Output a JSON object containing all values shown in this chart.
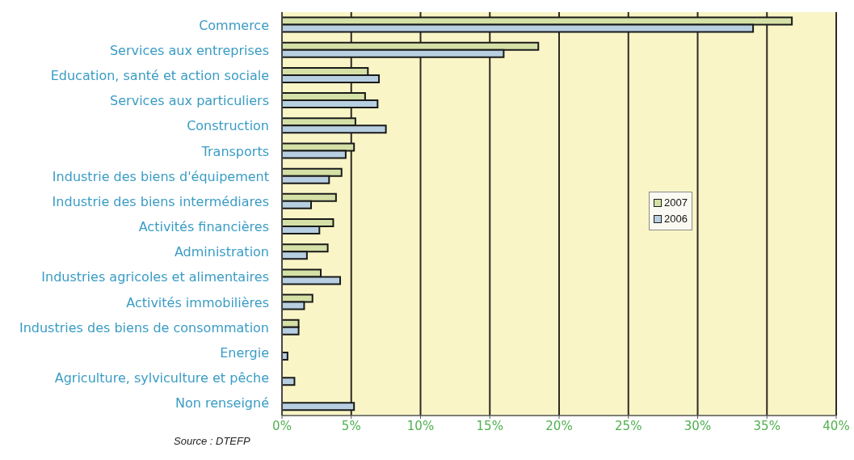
{
  "chart_data": {
    "type": "bar",
    "orientation": "horizontal",
    "categories": [
      "Commerce",
      "Services aux entreprises",
      "Education, santé et action sociale",
      "Services aux particuliers",
      "Construction",
      "Transports",
      "Industrie des biens d'équipement",
      "Industrie des biens intermédiares",
      "Activités financières",
      "Administration",
      "Industries agricoles et alimentaires",
      "Activités immobilières",
      "Industries des biens de consommation",
      "Energie",
      "Agriculture, sylviculture et pêche",
      "Non renseigné"
    ],
    "series": [
      {
        "name": "2007",
        "color": "#d4e0a6",
        "values": [
          36.8,
          18.5,
          6.2,
          6.0,
          5.3,
          5.2,
          4.3,
          3.9,
          3.7,
          3.3,
          2.8,
          2.2,
          1.2,
          null,
          null,
          null
        ]
      },
      {
        "name": "2006",
        "color": "#b7cfe0",
        "values": [
          34.0,
          16.0,
          7.0,
          6.9,
          7.5,
          4.6,
          3.4,
          2.1,
          2.7,
          1.8,
          4.2,
          1.6,
          1.2,
          0.4,
          0.9,
          5.2
        ]
      }
    ],
    "xlim": [
      0,
      40
    ],
    "xticks": [
      {
        "value": 0,
        "label": "0%"
      },
      {
        "value": 5,
        "label": "5%"
      },
      {
        "value": 10,
        "label": "10%"
      },
      {
        "value": 15,
        "label": "15%"
      },
      {
        "value": 20,
        "label": "20%"
      },
      {
        "value": 25,
        "label": "25%"
      },
      {
        "value": 30,
        "label": "30%"
      },
      {
        "value": 35,
        "label": "35%"
      },
      {
        "value": 40,
        "label": "40%"
      }
    ],
    "grid": "x",
    "legend": "right",
    "annotations": [
      "Source : DTEFP"
    ]
  }
}
